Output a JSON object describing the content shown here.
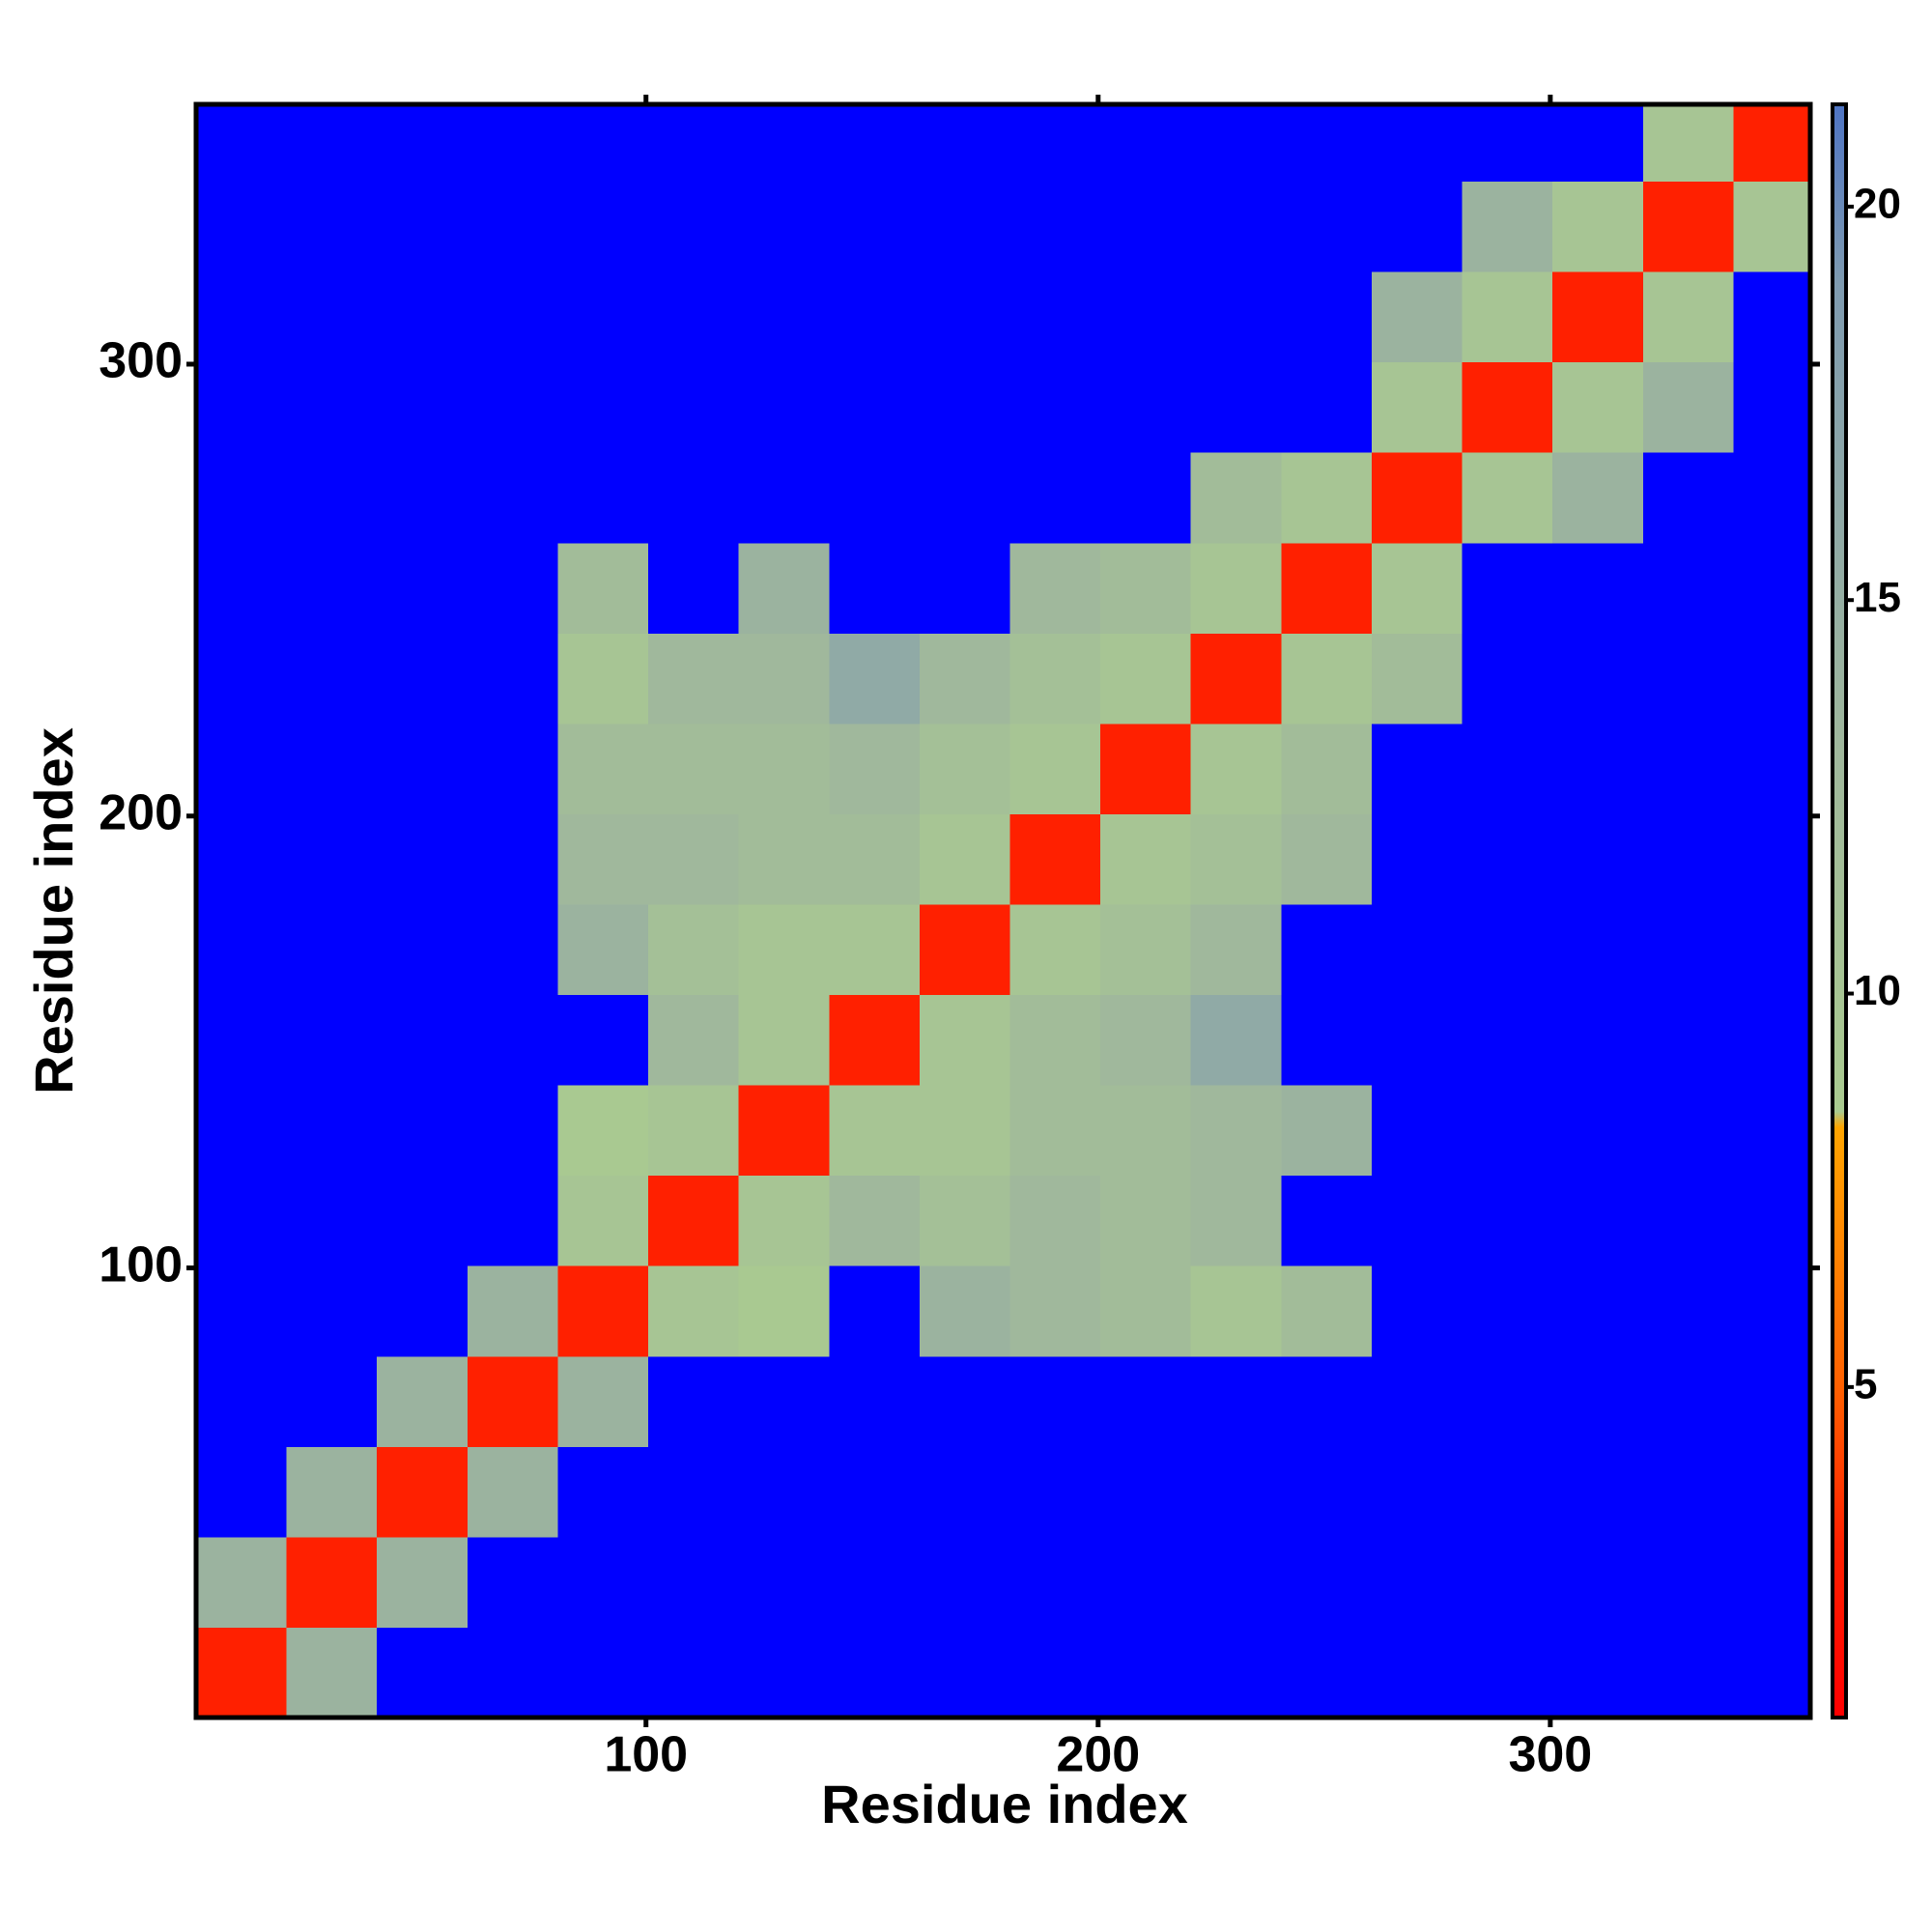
{
  "chart_data": {
    "type": "heatmap",
    "x_label": "Residue index",
    "y_label": "Residue index",
    "xlim": [
      0.5,
      357.5
    ],
    "ylim": [
      0.5,
      357.5
    ],
    "xticks": [
      100,
      200,
      300
    ],
    "yticks": [
      100,
      200,
      300
    ],
    "x_bins": [
      0.5,
      20.5,
      40.5,
      60.5,
      80.5,
      100.5,
      120.5,
      140.5,
      160.5,
      180.5,
      200.5,
      220.5,
      240.5,
      260.5,
      280.5,
      300.5,
      320.5,
      340.5,
      357.5
    ],
    "y_bins": [
      0.5,
      20.5,
      40.5,
      60.5,
      80.5,
      100.5,
      120.5,
      140.5,
      160.5,
      180.5,
      200.5,
      220.5,
      240.5,
      260.5,
      280.5,
      300.5,
      320.5,
      340.5,
      357.5
    ],
    "values": [
      [
        3,
        14,
        null,
        null,
        null,
        null,
        null,
        null,
        null,
        null,
        null,
        null,
        null,
        null,
        null,
        null,
        null,
        null
      ],
      [
        14,
        3,
        14,
        null,
        null,
        null,
        null,
        null,
        null,
        null,
        null,
        null,
        null,
        null,
        null,
        null,
        null,
        null
      ],
      [
        null,
        14,
        3,
        14,
        null,
        null,
        null,
        null,
        null,
        null,
        null,
        null,
        null,
        null,
        null,
        null,
        null,
        null
      ],
      [
        null,
        null,
        14,
        3,
        14,
        null,
        null,
        null,
        null,
        null,
        null,
        null,
        null,
        null,
        null,
        null,
        null,
        null
      ],
      [
        null,
        null,
        null,
        14,
        3,
        10,
        9,
        null,
        14,
        13,
        12,
        10,
        12,
        null,
        null,
        null,
        null,
        null
      ],
      [
        null,
        null,
        null,
        null,
        10,
        3,
        10,
        13,
        11,
        13,
        12,
        13,
        null,
        null,
        null,
        null,
        null,
        null
      ],
      [
        null,
        null,
        null,
        null,
        9,
        10,
        3,
        10,
        10,
        12,
        12,
        13,
        14,
        null,
        null,
        null,
        null,
        null
      ],
      [
        null,
        null,
        null,
        null,
        null,
        13,
        10,
        3,
        10,
        12,
        13,
        16,
        null,
        null,
        null,
        null,
        null,
        null
      ],
      [
        null,
        null,
        null,
        null,
        14,
        11,
        10,
        10,
        3,
        10,
        11,
        13,
        null,
        null,
        null,
        null,
        null,
        null
      ],
      [
        null,
        null,
        null,
        null,
        13,
        13,
        12,
        12,
        10,
        3,
        10,
        11,
        13,
        null,
        null,
        null,
        null,
        null
      ],
      [
        null,
        null,
        null,
        null,
        12,
        12,
        12,
        13,
        11,
        10,
        3,
        10,
        12,
        null,
        null,
        null,
        null,
        null
      ],
      [
        null,
        null,
        null,
        null,
        10,
        13,
        13,
        16,
        13,
        11,
        10,
        3,
        10,
        12,
        null,
        null,
        null,
        null
      ],
      [
        null,
        null,
        null,
        null,
        12,
        null,
        14,
        null,
        null,
        13,
        12,
        10,
        3,
        10,
        null,
        null,
        null,
        null
      ],
      [
        null,
        null,
        null,
        null,
        null,
        null,
        null,
        null,
        null,
        null,
        null,
        12,
        10,
        3,
        10,
        14,
        null,
        null
      ],
      [
        null,
        null,
        null,
        null,
        null,
        null,
        null,
        null,
        null,
        null,
        null,
        null,
        null,
        10,
        3,
        10,
        14,
        null
      ],
      [
        null,
        null,
        null,
        null,
        null,
        null,
        null,
        null,
        null,
        null,
        null,
        null,
        null,
        14,
        10,
        3,
        10,
        null
      ],
      [
        null,
        null,
        null,
        null,
        null,
        null,
        null,
        null,
        null,
        null,
        null,
        null,
        null,
        null,
        14,
        10,
        3,
        10
      ],
      [
        null,
        null,
        null,
        null,
        null,
        null,
        null,
        null,
        null,
        null,
        null,
        null,
        null,
        null,
        null,
        null,
        10,
        3
      ]
    ],
    "missing_color": "#0000ff",
    "colorbar": {
      "lim": [
        0.8,
        21.3
      ],
      "ticks": [
        5,
        10,
        15,
        20
      ],
      "stops": [
        {
          "value": 0.8,
          "color": "#ff0000"
        },
        {
          "value": 3,
          "color": "#ff2000"
        },
        {
          "value": 5,
          "color": "#ff6000"
        },
        {
          "value": 8.3,
          "color": "#ffa500"
        },
        {
          "value": 8.5,
          "color": "#aacb90"
        },
        {
          "value": 13,
          "color": "#a0b89c"
        },
        {
          "value": 19,
          "color": "#7f9bb0"
        },
        {
          "value": 21.3,
          "color": "#4f75c4"
        }
      ]
    }
  }
}
